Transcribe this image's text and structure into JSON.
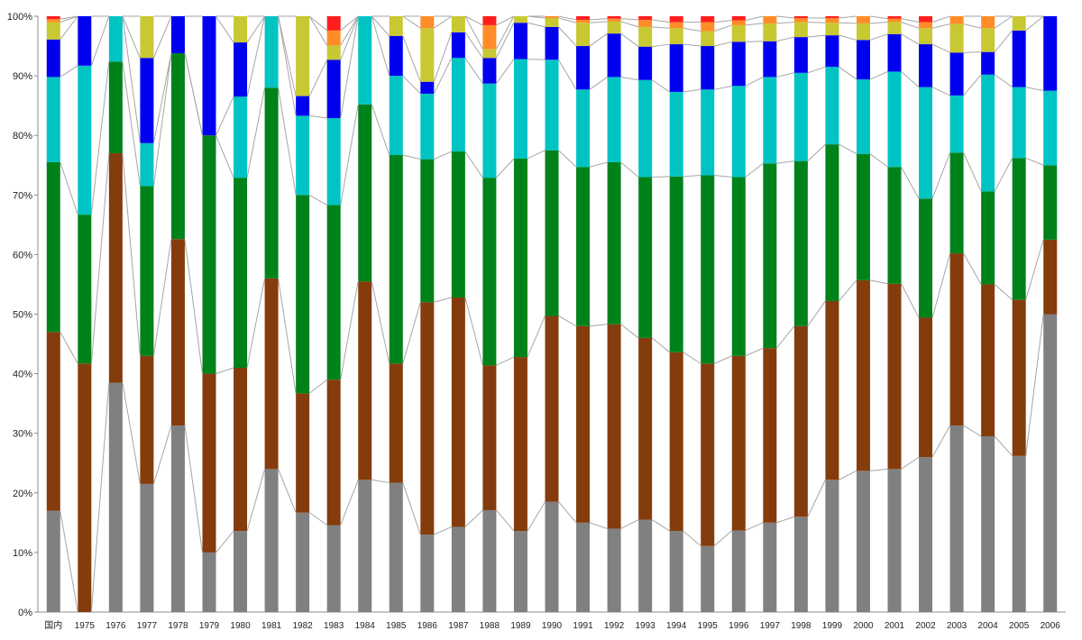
{
  "chart_data": {
    "type": "bar",
    "stacked": true,
    "normalized": true,
    "title": "",
    "xlabel": "",
    "ylabel": "",
    "ylim": [
      0,
      100
    ],
    "y_ticks": [
      "0%",
      "10%",
      "20%",
      "30%",
      "40%",
      "50%",
      "60%",
      "70%",
      "80%",
      "90%",
      "100%"
    ],
    "grid": false,
    "series_lines": true,
    "legend": "none",
    "categories": [
      "国内",
      "1975",
      "1976",
      "1977",
      "1978",
      "1979",
      "1980",
      "1981",
      "1982",
      "1983",
      "1984",
      "1985",
      "1986",
      "1987",
      "1988",
      "1989",
      "1990",
      "1991",
      "1992",
      "1993",
      "1994",
      "1995",
      "1996",
      "1997",
      "1998",
      "1999",
      "2000",
      "2001",
      "2002",
      "2003",
      "2004",
      "2005",
      "2006"
    ],
    "series": [
      {
        "color": "#808080",
        "values": [
          17.0,
          0.0,
          38.5,
          21.5,
          31.3,
          10.0,
          13.6,
          24.0,
          16.7,
          14.6,
          22.2,
          21.7,
          13.0,
          14.3,
          17.1,
          13.6,
          18.5,
          15.0,
          14.0,
          15.5,
          13.6,
          11.1,
          13.7,
          15.0,
          16.0,
          22.2,
          23.7,
          24.0,
          26.0,
          31.3,
          29.5,
          26.2,
          50.0
        ]
      },
      {
        "color": "#843C0C",
        "values": [
          30.0,
          41.7,
          38.5,
          21.5,
          31.3,
          30.0,
          27.4,
          32.0,
          20.0,
          24.4,
          33.3,
          20.0,
          39.0,
          38.5,
          24.3,
          29.2,
          31.2,
          33.0,
          34.3,
          30.5,
          30.0,
          30.6,
          29.3,
          29.3,
          32.0,
          30.0,
          32.0,
          31.1,
          23.4,
          28.9,
          25.5,
          26.2,
          12.5
        ]
      },
      {
        "color": "#00821B",
        "values": [
          28.5,
          25.0,
          15.4,
          28.5,
          31.2,
          40.0,
          31.9,
          32.0,
          33.3,
          29.3,
          29.7,
          35.0,
          24.0,
          24.5,
          31.5,
          33.3,
          27.8,
          26.7,
          27.2,
          27.0,
          29.5,
          31.6,
          30.0,
          31.0,
          27.7,
          26.3,
          21.2,
          19.6,
          20.0,
          16.9,
          15.6,
          23.8,
          12.5
        ]
      },
      {
        "color": "#00C4C4",
        "values": [
          14.3,
          25.0,
          7.6,
          7.2,
          0.0,
          0.0,
          13.6,
          12.0,
          13.3,
          14.6,
          14.8,
          13.3,
          11.0,
          15.7,
          15.8,
          16.7,
          15.2,
          13.0,
          14.3,
          16.3,
          14.2,
          14.4,
          15.3,
          14.5,
          14.8,
          13.0,
          12.5,
          16.0,
          18.7,
          9.6,
          19.6,
          11.9,
          12.5
        ]
      },
      {
        "color": "#0000F0",
        "values": [
          6.3,
          8.3,
          0.0,
          14.3,
          6.2,
          20.0,
          9.1,
          0.0,
          3.3,
          9.8,
          0.0,
          6.7,
          2.0,
          4.3,
          4.3,
          6.1,
          5.5,
          7.3,
          7.3,
          5.6,
          8.0,
          7.3,
          7.4,
          6.0,
          6.0,
          5.3,
          6.6,
          6.3,
          7.2,
          7.2,
          3.8,
          9.5,
          12.5
        ]
      },
      {
        "color": "#C8C832",
        "values": [
          2.9,
          0.0,
          0.0,
          7.0,
          0.0,
          0.0,
          4.4,
          0.0,
          13.4,
          2.4,
          0.0,
          3.3,
          9.0,
          2.7,
          1.5,
          1.1,
          1.5,
          3.9,
          2.0,
          3.3,
          2.7,
          2.5,
          2.8,
          3.0,
          2.5,
          2.1,
          2.8,
          2.0,
          2.7,
          4.8,
          4.0,
          2.4,
          0.0
        ]
      },
      {
        "color": "#FF8C28",
        "values": [
          0.5,
          0.0,
          0.0,
          0.0,
          0.0,
          0.0,
          0.0,
          0.0,
          0.0,
          2.5,
          0.0,
          0.0,
          2.0,
          0.0,
          4.0,
          0.0,
          0.3,
          0.5,
          0.5,
          1.2,
          1.0,
          1.5,
          0.8,
          1.2,
          0.7,
          0.8,
          1.2,
          0.6,
          1.0,
          1.3,
          2.0,
          0.0,
          0.0
        ]
      },
      {
        "color": "#FF1E1E",
        "values": [
          0.5,
          0.0,
          0.0,
          0.0,
          0.0,
          0.0,
          0.0,
          0.0,
          0.0,
          2.4,
          0.0,
          0.0,
          0.0,
          0.0,
          1.5,
          0.0,
          0.0,
          0.6,
          0.4,
          0.6,
          1.0,
          1.0,
          0.7,
          0.0,
          0.3,
          0.3,
          0.0,
          0.4,
          1.0,
          0.0,
          0.0,
          0.0,
          0.0
        ]
      }
    ]
  }
}
